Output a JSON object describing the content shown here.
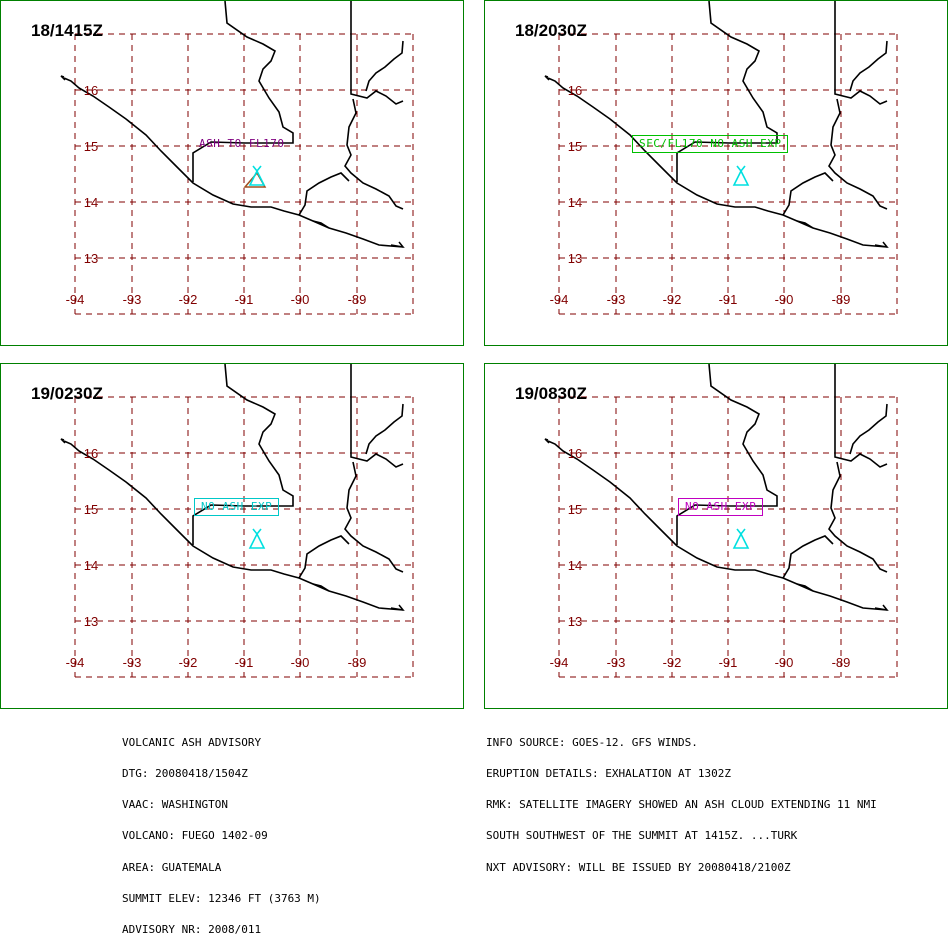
{
  "panels": [
    {
      "title": "18/1415Z",
      "label": "ASH TO FL170",
      "label_boxed": false,
      "label_color": "#800080",
      "volcano_color": "#00e0e0",
      "ash_polygon": true
    },
    {
      "title": "18/2030Z",
      "label": "SFC/FL170 NO ASH EXP",
      "label_boxed": true,
      "label_color": "#00c000",
      "volcano_color": "#00e0e0",
      "ash_polygon": false
    },
    {
      "title": "19/0230Z",
      "label": "NO ASH EXP",
      "label_boxed": true,
      "label_color": "#00c8c8",
      "volcano_color": "#00e0e0",
      "ash_polygon": false
    },
    {
      "title": "19/0830Z",
      "label": "NO ASH EXP",
      "label_boxed": true,
      "label_color": "#c000c0",
      "volcano_color": "#00e0e0",
      "ash_polygon": false
    }
  ],
  "map": {
    "lon_ticks": [
      "-94",
      "-93",
      "-92",
      "-91",
      "-90",
      "-89"
    ],
    "lat_ticks": [
      "16",
      "15",
      "14",
      "13"
    ],
    "grid_color": "#800000",
    "coast_color": "#000000"
  },
  "advisory_left": [
    "VOLCANIC ASH ADVISORY",
    "DTG: 20080418/1504Z",
    "VAAC: WASHINGTON",
    "VOLCANO: FUEGO 1402-09",
    "AREA: GUATEMALA",
    "SUMMIT ELEV: 12346 FT (3763 M)",
    "ADVISORY NR: 2008/011"
  ],
  "advisory_right": [
    "INFO SOURCE: GOES-12. GFS WINDS.",
    "ERUPTION DETAILS: EXHALATION AT 1302Z",
    "RMK: SATELLITE IMAGERY SHOWED AN ASH CLOUD EXTENDING 11 NMI",
    "SOUTH SOUTHWEST OF THE SUMMIT AT 1415Z. ...TURK",
    "NXT ADVISORY: WILL BE ISSUED BY 20080418/2100Z"
  ]
}
